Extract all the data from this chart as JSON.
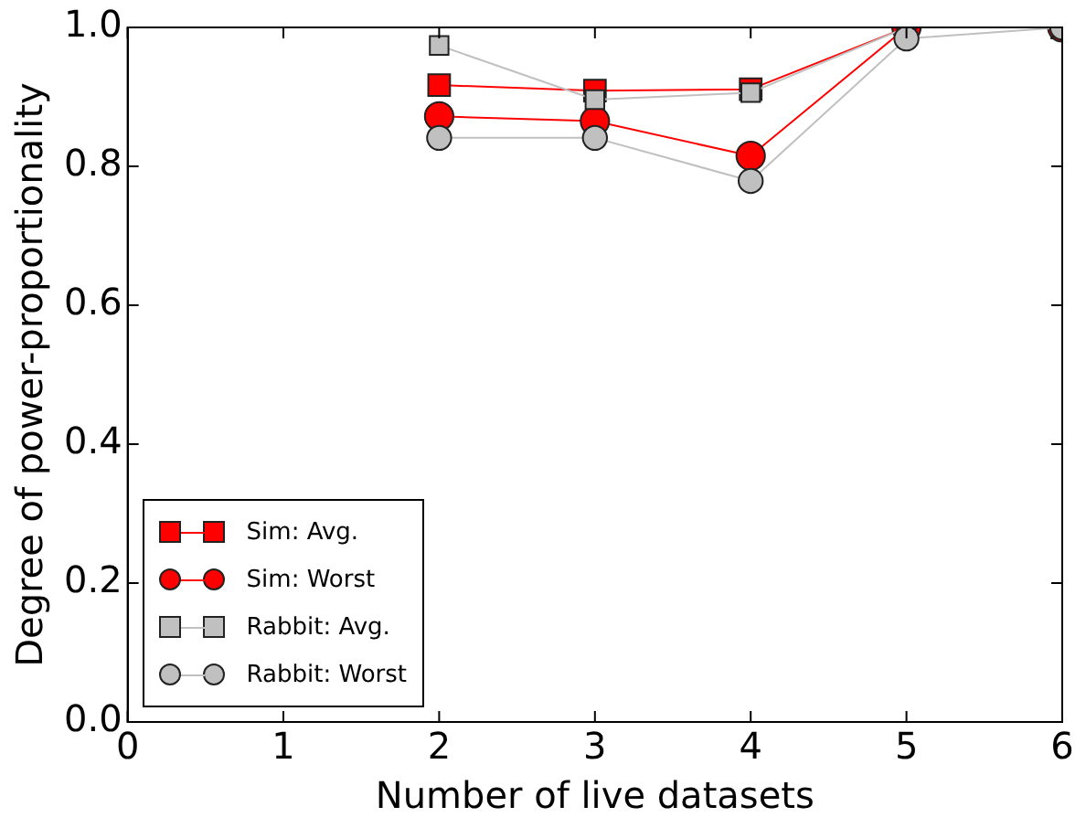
{
  "chart_data": {
    "type": "line",
    "xlabel": "Number of live datasets",
    "ylabel": "Degree of power-proportionality",
    "x": [
      2,
      3,
      4,
      5,
      6
    ],
    "series": [
      {
        "name": "Sim: Avg.",
        "color": "#ff0000",
        "marker": "square",
        "values": [
          0.917,
          0.909,
          0.911,
          1.0,
          1.0
        ]
      },
      {
        "name": "Sim: Worst",
        "color": "#ff0000",
        "marker": "circle",
        "values": [
          0.872,
          0.865,
          0.815,
          1.0,
          1.0
        ]
      },
      {
        "name": "Rabbit: Avg.",
        "color": "#c0c0c0",
        "marker": "square",
        "values": [
          0.974,
          0.896,
          0.906,
          1.0,
          1.0
        ]
      },
      {
        "name": "Rabbit: Worst",
        "color": "#c0c0c0",
        "marker": "circle",
        "values": [
          0.841,
          0.841,
          0.779,
          0.984,
          1.0
        ]
      }
    ],
    "xlim": [
      0,
      6
    ],
    "xticks": [
      0,
      1,
      2,
      3,
      4,
      5,
      6
    ],
    "ylim": [
      0,
      1
    ],
    "yticks": [
      {
        "value": 0,
        "label": "0.0"
      },
      {
        "value": 0.2,
        "label": "0.2"
      },
      {
        "value": 0.4,
        "label": "0.4"
      },
      {
        "value": 0.6,
        "label": "0.6"
      },
      {
        "value": 0.8,
        "label": "0.8"
      },
      {
        "value": 1,
        "label": "1.0"
      }
    ],
    "grid": false,
    "legend": "bottom left",
    "line_style": "solid"
  }
}
